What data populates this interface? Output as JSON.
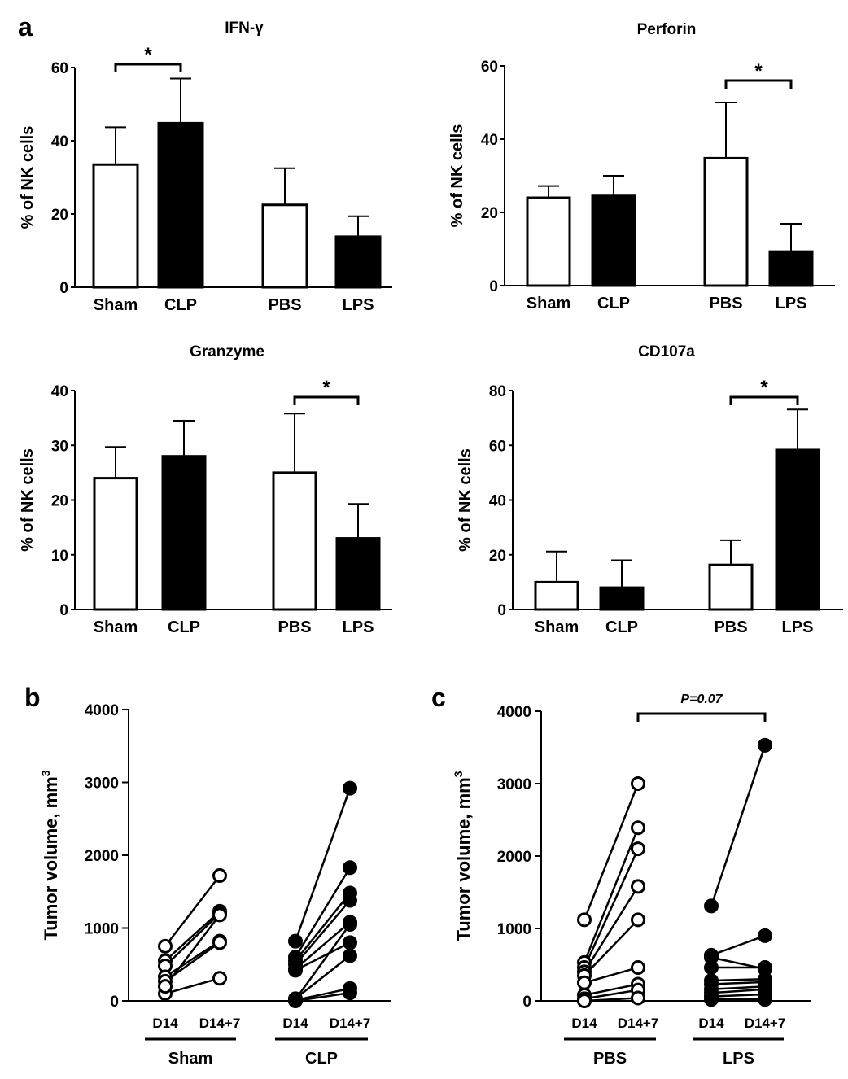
{
  "panels": [
    {
      "label": "a"
    },
    {
      "label": "b"
    },
    {
      "label": "c"
    }
  ],
  "chart_data": [
    {
      "type": "bar",
      "panel": "a",
      "title": "IFN-γ",
      "ylabel": "% of NK cells",
      "categories": [
        "Sham",
        "CLP",
        "PBS",
        "LPS"
      ],
      "fills": [
        "open",
        "filled",
        "open",
        "filled"
      ],
      "values": [
        33.5,
        44.8,
        22.5,
        13.8
      ],
      "errors": [
        10.2,
        12.2,
        10.0,
        5.6
      ],
      "ylim": [
        0,
        60
      ],
      "yticks": [
        0,
        20,
        40,
        60
      ],
      "significance": [
        {
          "from": 0,
          "to": 1,
          "label": "*"
        }
      ]
    },
    {
      "type": "bar",
      "panel": "a",
      "title": "Perforin",
      "ylabel": "% of NK cells",
      "categories": [
        "Sham",
        "CLP",
        "PBS",
        "LPS"
      ],
      "fills": [
        "open",
        "filled",
        "open",
        "filled"
      ],
      "values": [
        24.0,
        24.5,
        34.8,
        9.3
      ],
      "errors": [
        3.2,
        5.5,
        15.2,
        7.6
      ],
      "ylim": [
        0,
        60
      ],
      "yticks": [
        0,
        20,
        40,
        60
      ],
      "significance": [
        {
          "from": 2,
          "to": 3,
          "label": "*"
        }
      ]
    },
    {
      "type": "bar",
      "panel": "a",
      "title": "Granzyme",
      "ylabel": "% of NK cells",
      "categories": [
        "Sham",
        "CLP",
        "PBS",
        "LPS"
      ],
      "fills": [
        "open",
        "filled",
        "open",
        "filled"
      ],
      "values": [
        24.0,
        28.0,
        25.0,
        13.0
      ],
      "errors": [
        5.7,
        6.5,
        10.8,
        6.3
      ],
      "ylim": [
        0,
        40
      ],
      "yticks": [
        0,
        10,
        20,
        30,
        40
      ],
      "significance": [
        {
          "from": 2,
          "to": 3,
          "label": "*"
        }
      ]
    },
    {
      "type": "bar",
      "panel": "a",
      "title": "CD107a",
      "ylabel": "% of NK cells",
      "categories": [
        "Sham",
        "CLP",
        "PBS",
        "LPS"
      ],
      "fills": [
        "open",
        "filled",
        "open",
        "filled"
      ],
      "values": [
        10.0,
        8.0,
        16.3,
        58.3
      ],
      "errors": [
        11.2,
        10.0,
        9.0,
        14.8
      ],
      "ylim": [
        0,
        80
      ],
      "yticks": [
        0,
        20,
        40,
        60,
        80
      ],
      "significance": [
        {
          "from": 2,
          "to": 3,
          "label": "*"
        }
      ]
    },
    {
      "type": "scatter",
      "panel": "b",
      "title": "",
      "ylabel": "Tumor volume, mm",
      "ylabel_superscript": "3",
      "ylim": [
        0,
        4000
      ],
      "yticks": [
        0,
        1000,
        2000,
        3000,
        4000
      ],
      "timepoints": [
        "D14",
        "D14+7"
      ],
      "groups": [
        {
          "name": "Sham",
          "marker": "open",
          "pairs": [
            [
              750,
              1720
            ],
            [
              550,
              1230
            ],
            [
              480,
              1200
            ],
            [
              330,
              820
            ],
            [
              270,
              800
            ],
            [
              100,
              310
            ],
            [
              200,
              1180
            ]
          ]
        },
        {
          "name": "CLP",
          "marker": "filled",
          "pairs": [
            [
              820,
              2920
            ],
            [
              600,
              1830
            ],
            [
              550,
              1480
            ],
            [
              500,
              1380
            ],
            [
              440,
              1080
            ],
            [
              420,
              800
            ],
            [
              20,
              1050
            ],
            [
              30,
              620
            ],
            [
              10,
              170
            ],
            [
              0,
              110
            ]
          ]
        }
      ]
    },
    {
      "type": "scatter",
      "panel": "c",
      "title": "",
      "ylabel": "Tumor volume, mm",
      "ylabel_superscript": "3",
      "ylim": [
        0,
        4000
      ],
      "yticks": [
        0,
        1000,
        2000,
        3000,
        4000
      ],
      "timepoints": [
        "D14",
        "D14+7"
      ],
      "annotation": {
        "from_group": 0,
        "to_group": 1,
        "label": "P=0.07"
      },
      "groups": [
        {
          "name": "PBS",
          "marker": "open",
          "pairs": [
            [
              1120,
              3000
            ],
            [
              530,
              2390
            ],
            [
              460,
              2100
            ],
            [
              400,
              1580
            ],
            [
              350,
              1120
            ],
            [
              250,
              460
            ],
            [
              80,
              230
            ],
            [
              30,
              150
            ],
            [
              0,
              40
            ]
          ]
        },
        {
          "name": "LPS",
          "marker": "filled",
          "pairs": [
            [
              1310,
              3530
            ],
            [
              630,
              900
            ],
            [
              600,
              440
            ],
            [
              460,
              460
            ],
            [
              280,
              300
            ],
            [
              230,
              260
            ],
            [
              160,
              200
            ],
            [
              110,
              160
            ],
            [
              60,
              90
            ],
            [
              20,
              20
            ]
          ]
        }
      ]
    }
  ]
}
